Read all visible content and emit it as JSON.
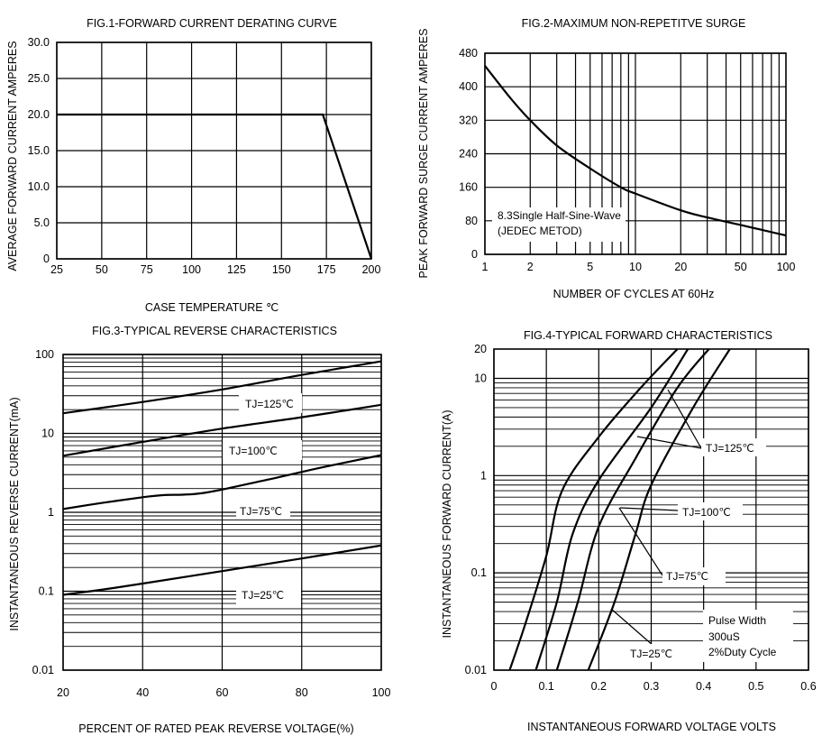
{
  "chart_data": [
    {
      "id": "fig1",
      "type": "line",
      "title": "FIG.1-FORWARD CURRENT DERATING CURVE",
      "xlabel": "CASE TEMPERATURE ℃",
      "ylabel": "AVERAGE FORWARD CURRENT AMPERES",
      "xscale": "linear",
      "yscale": "linear",
      "xlim": [
        25,
        200
      ],
      "ylim": [
        0,
        30
      ],
      "xticks": [
        25,
        50,
        75,
        100,
        125,
        150,
        175,
        200
      ],
      "xtick_labels": [
        "25",
        "50",
        "75",
        "100",
        "125",
        "150",
        "175",
        "200"
      ],
      "yticks": [
        0,
        5,
        10,
        15,
        20,
        25,
        30
      ],
      "ytick_labels": [
        "0",
        "5.0",
        "10.0",
        "15.0",
        "20.0",
        "25.0",
        "30.0"
      ],
      "series": [
        {
          "name": "derating",
          "x": [
            25,
            173,
            200
          ],
          "y": [
            20,
            20,
            0
          ]
        }
      ]
    },
    {
      "id": "fig2",
      "type": "line",
      "title": "FIG.2-MAXIMUM NON-REPETITVE SURGE",
      "xlabel": "NUMBER OF CYCLES AT 60Hz",
      "ylabel": "PEAK FORWARD  SURGE CURRENT AMPERES",
      "xscale": "log",
      "yscale": "linear",
      "xlim": [
        1,
        100
      ],
      "ylim": [
        0,
        480
      ],
      "xticks": [
        1,
        2,
        5,
        10,
        20,
        50,
        100
      ],
      "xtick_labels": [
        "1",
        "2",
        "5",
        "10",
        "20",
        "50",
        "100"
      ],
      "yticks": [
        0,
        80,
        160,
        240,
        320,
        400,
        480
      ],
      "ytick_labels": [
        "0",
        "80",
        "160",
        "240",
        "320",
        "400",
        "480"
      ],
      "annotations": [
        "8.3Single Half-Sine-Wave",
        "(JEDEC METOD)"
      ],
      "series": [
        {
          "name": "surge",
          "x": [
            1,
            1.5,
            2,
            3,
            5,
            8,
            10,
            20,
            30,
            50,
            100
          ],
          "y": [
            450,
            370,
            320,
            260,
            205,
            160,
            145,
            105,
            88,
            70,
            45
          ]
        }
      ]
    },
    {
      "id": "fig3",
      "type": "line",
      "title": "FIG.3-TYPICAL REVERSE CHARACTERISTICS",
      "xlabel": "PERCENT OF RATED PEAK REVERSE VOLTAGE(%)",
      "ylabel": "INSTANTANEOUS REVERSE CURRENT(mA)",
      "xscale": "linear",
      "yscale": "log",
      "xlim": [
        20,
        100
      ],
      "ylim": [
        0.01,
        100
      ],
      "xticks": [
        20,
        40,
        60,
        80,
        100
      ],
      "xtick_labels": [
        "20",
        "40",
        "60",
        "80",
        "100"
      ],
      "yticks": [
        0.01,
        0.1,
        1,
        10,
        100
      ],
      "ytick_labels": [
        "0.01",
        "0.1",
        "1",
        "10",
        "100"
      ],
      "series": [
        {
          "name": "TJ=125℃",
          "label": "TJ=125℃",
          "x": [
            20,
            40,
            60,
            80,
            100
          ],
          "y": [
            18,
            25,
            36,
            55,
            82
          ]
        },
        {
          "name": "TJ=100℃",
          "label": "TJ=100℃",
          "x": [
            20,
            40,
            60,
            80,
            100
          ],
          "y": [
            5.2,
            7.8,
            11.5,
            16,
            23
          ]
        },
        {
          "name": "TJ=75℃",
          "label": "TJ=75℃",
          "x": [
            20,
            30,
            40,
            45,
            55,
            70,
            85,
            100
          ],
          "y": [
            1.1,
            1.32,
            1.55,
            1.65,
            1.75,
            2.5,
            3.7,
            5.3
          ]
        },
        {
          "name": "TJ=25℃",
          "label": "TJ=25℃",
          "x": [
            20,
            30,
            40,
            60,
            80,
            100
          ],
          "y": [
            0.09,
            0.105,
            0.125,
            0.18,
            0.26,
            0.38
          ]
        }
      ]
    },
    {
      "id": "fig4",
      "type": "line",
      "title": "FIG.4-TYPICAL FORWARD CHARACTERISTICS",
      "xlabel": "INSTANTANEOUS FORWARD VOLTAGE VOLTS",
      "ylabel": "INSTANTANEOUS FORWARD CURRENT(A)",
      "xscale": "linear",
      "yscale": "log",
      "xlim": [
        0,
        0.6
      ],
      "ylim": [
        0.01,
        20
      ],
      "xticks": [
        0,
        0.1,
        0.2,
        0.3,
        0.4,
        0.5,
        0.6
      ],
      "xtick_labels": [
        "0",
        "0.1",
        "0.2",
        "0.3",
        "0.4",
        "0.5",
        "0.6"
      ],
      "yticks": [
        0.01,
        0.1,
        1,
        10,
        20
      ],
      "ytick_labels": [
        "0.01",
        "0.1",
        "1",
        "10",
        "20"
      ],
      "annotations": [
        "Pulse Width",
        "300uS",
        "2%Duty Cycle"
      ],
      "series": [
        {
          "name": "TJ=125℃",
          "label": "TJ=125℃",
          "x": [
            0.03,
            0.06,
            0.1,
            0.13,
            0.2,
            0.28,
            0.35
          ],
          "y": [
            0.01,
            0.03,
            0.15,
            0.7,
            2.5,
            8,
            20
          ]
        },
        {
          "name": "TJ=100℃",
          "label": "TJ=100℃",
          "x": [
            0.08,
            0.12,
            0.15,
            0.2,
            0.3,
            0.37
          ],
          "y": [
            0.01,
            0.05,
            0.25,
            0.9,
            5,
            20
          ]
        },
        {
          "name": "TJ=75℃",
          "label": "TJ=75℃",
          "x": [
            0.12,
            0.16,
            0.2,
            0.27,
            0.35,
            0.41
          ],
          "y": [
            0.01,
            0.05,
            0.3,
            1.5,
            8,
            20
          ]
        },
        {
          "name": "TJ=25℃",
          "label": "TJ=25℃",
          "x": [
            0.18,
            0.23,
            0.27,
            0.3,
            0.38,
            0.45
          ],
          "y": [
            0.01,
            0.05,
            0.25,
            0.8,
            5,
            20
          ]
        }
      ]
    }
  ]
}
